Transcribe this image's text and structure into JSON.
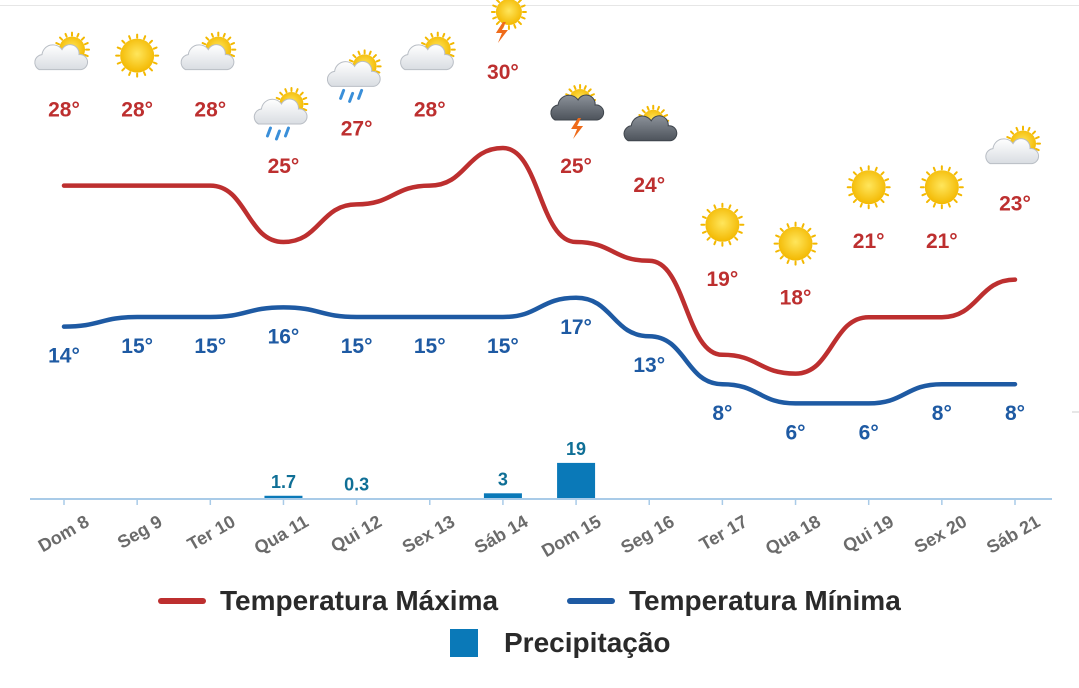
{
  "chart_data": {
    "type": "line",
    "categories": [
      "Dom 8",
      "Seg 9",
      "Ter 10",
      "Qua 11",
      "Qui 12",
      "Sex 13",
      "Sáb 14",
      "Dom 15",
      "Seg 16",
      "Ter 17",
      "Qua 18",
      "Qui 19",
      "Sex 20",
      "Sáb 21"
    ],
    "series": [
      {
        "name": "Temperatura Máxima",
        "type": "line",
        "color": "#bd2f2f",
        "values": [
          28,
          28,
          28,
          25,
          27,
          28,
          30,
          25,
          24,
          19,
          18,
          21,
          21,
          23
        ],
        "labels": [
          "28°",
          "28°",
          "28°",
          "25°",
          "27°",
          "28°",
          "30°",
          "25°",
          "24°",
          "19°",
          "18°",
          "21°",
          "21°",
          "23°"
        ]
      },
      {
        "name": "Temperatura Mínima",
        "type": "line",
        "color": "#1e5aa3",
        "values": [
          14,
          15,
          15,
          16,
          15,
          15,
          15,
          17,
          13,
          8,
          6,
          6,
          8,
          8
        ],
        "labels": [
          "14°",
          "15°",
          "15°",
          "16°",
          "15°",
          "15°",
          "15°",
          "17°",
          "13°",
          "8°",
          "6°",
          "6°",
          "8°",
          "8°"
        ]
      },
      {
        "name": "Precipitação",
        "type": "bar",
        "color": "#0a79b8",
        "values": [
          0,
          0,
          0,
          1.7,
          0.3,
          0,
          3,
          19,
          0,
          0,
          0,
          0,
          0,
          0
        ],
        "labels": [
          "",
          "",
          "",
          "1.7",
          "0.3",
          "",
          "3",
          "19",
          "",
          "",
          "",
          "",
          "",
          ""
        ]
      }
    ],
    "icons": [
      "sun-cloud-icon",
      "sun-icon",
      "sun-cloud-icon",
      "sun-rain-cloud-icon",
      "sun-rain-cloud-icon",
      "sun-cloud-icon",
      "sun-storm-icon",
      "storm-cloud-icon",
      "dark-cloud-icon",
      "sun-icon",
      "sun-icon",
      "sun-icon",
      "sun-icon",
      "sun-cloud-icon"
    ],
    "legend": [
      "Temperatura Máxima",
      "Temperatura Mínima",
      "Precipitação"
    ],
    "legend_position": "bottom",
    "colors": {
      "max": "#bd2f2f",
      "min": "#1e5aa3",
      "precip": "#0a79b8",
      "precip_label": "#0f6f96",
      "axis": "#a9cbe8",
      "tick_label": "#6b6b6b"
    }
  }
}
